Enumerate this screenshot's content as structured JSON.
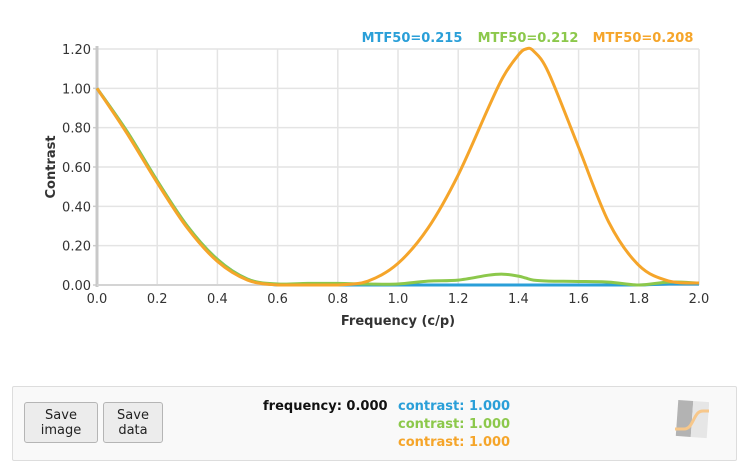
{
  "chart_data": {
    "type": "line",
    "title": "",
    "xlabel": "Frequency (c/p)",
    "ylabel": "Contrast",
    "xlim": [
      0.0,
      2.0
    ],
    "ylim": [
      0.0,
      1.2
    ],
    "grid": true,
    "x_ticks": [
      "0.0",
      "0.2",
      "0.4",
      "0.6",
      "0.8",
      "1.0",
      "1.2",
      "1.4",
      "1.6",
      "1.8",
      "2.0"
    ],
    "y_ticks": [
      "0.00",
      "0.20",
      "0.40",
      "0.60",
      "0.80",
      "1.00",
      "1.20"
    ],
    "legend_position": "top-right",
    "x": [
      0.0,
      0.1,
      0.2,
      0.3,
      0.4,
      0.5,
      0.6,
      0.7,
      0.8,
      0.9,
      1.0,
      1.1,
      1.2,
      1.3,
      1.35,
      1.4,
      1.425,
      1.45,
      1.5,
      1.6,
      1.7,
      1.8,
      1.9,
      2.0
    ],
    "series": [
      {
        "name": "MTF50=0.215",
        "color": "#2a9fd8",
        "values": [
          1.0,
          0.78,
          0.53,
          0.3,
          0.13,
          0.03,
          0.0,
          0.0,
          0.0,
          0.0,
          0.0,
          0.0,
          0.0,
          0.0,
          0.0,
          0.0,
          0.0,
          0.0,
          0.0,
          0.0,
          0.0,
          0.0,
          0.005,
          0.005
        ]
      },
      {
        "name": "MTF50=0.212",
        "color": "#8cc84b",
        "values": [
          1.0,
          0.78,
          0.53,
          0.3,
          0.13,
          0.03,
          0.005,
          0.008,
          0.008,
          0.005,
          0.005,
          0.02,
          0.025,
          0.05,
          0.055,
          0.045,
          0.035,
          0.025,
          0.02,
          0.018,
          0.015,
          0.0,
          0.015,
          0.01
        ]
      },
      {
        "name": "MTF50=0.208",
        "color": "#f5a52a",
        "values": [
          1.0,
          0.77,
          0.52,
          0.29,
          0.12,
          0.025,
          0.0,
          0.0,
          0.0,
          0.02,
          0.11,
          0.29,
          0.56,
          0.9,
          1.06,
          1.17,
          1.2,
          1.19,
          1.08,
          0.7,
          0.32,
          0.1,
          0.02,
          0.01
        ]
      }
    ]
  },
  "legend": [
    {
      "label": "MTF50=0.215",
      "color": "#2a9fd8"
    },
    {
      "label": "MTF50=0.212",
      "color": "#8cc84b"
    },
    {
      "label": "MTF50=0.208",
      "color": "#f5a52a"
    }
  ],
  "controls": {
    "save_image": [
      "Save",
      "image"
    ],
    "save_data": [
      "Save",
      "data"
    ]
  },
  "readout": {
    "frequency": "frequency: 0.000",
    "contrasts": [
      {
        "text": "contrast: 1.000",
        "color": "#2a9fd8"
      },
      {
        "text": "contrast: 1.000",
        "color": "#8cc84b"
      },
      {
        "text": "contrast: 1.000",
        "color": "#f5a52a"
      }
    ]
  },
  "icons": {
    "logo": "edge-mtf-logo-icon"
  }
}
